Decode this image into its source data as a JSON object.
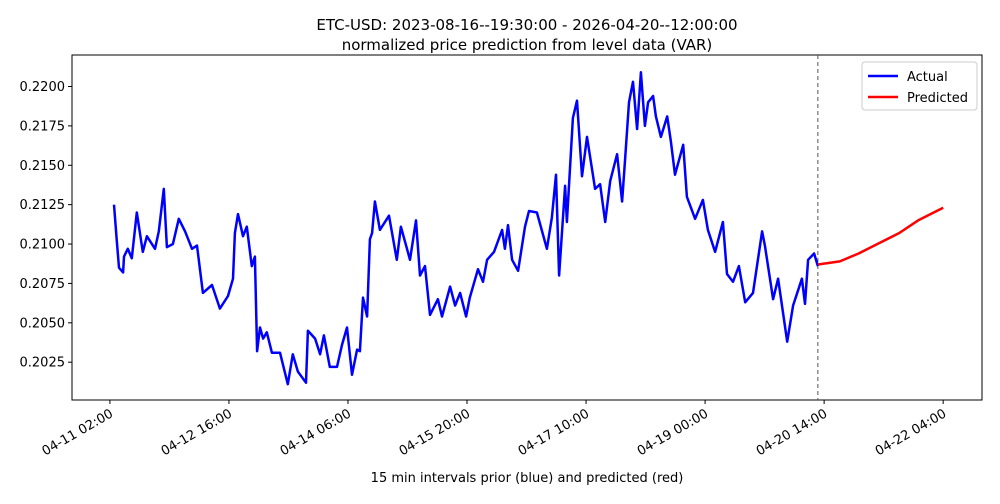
{
  "chart_data": {
    "type": "line",
    "title": "ETC-USD: 2023-08-16--19:30:00 - 2026-04-20--12:00:00",
    "subtitle": "normalized price prediction from level data (VAR)",
    "xlabel": "15 min intervals prior (blue) and predicted (red)",
    "ylabel": "",
    "x_unit": "hours since 04-11 02:00",
    "xlim": [
      -12.1,
      278.4
    ],
    "ylim": [
      0.2001,
      0.222
    ],
    "grid": false,
    "legend_placement": "top-right",
    "xticks": [
      {
        "x": 0,
        "label": "04-11 02:00"
      },
      {
        "x": 38,
        "label": "04-12 16:00"
      },
      {
        "x": 76,
        "label": "04-14 06:00"
      },
      {
        "x": 114,
        "label": "04-15 20:00"
      },
      {
        "x": 152,
        "label": "04-17 10:00"
      },
      {
        "x": 190,
        "label": "04-19 00:00"
      },
      {
        "x": 228,
        "label": "04-20 14:00"
      },
      {
        "x": 266,
        "label": "04-22 04:00"
      }
    ],
    "yticks": [
      {
        "y": 0.2025,
        "label": "0.2025"
      },
      {
        "y": 0.205,
        "label": "0.2050"
      },
      {
        "y": 0.2075,
        "label": "0.2075"
      },
      {
        "y": 0.21,
        "label": "0.2100"
      },
      {
        "y": 0.2125,
        "label": "0.2125"
      },
      {
        "y": 0.215,
        "label": "0.2150"
      },
      {
        "y": 0.2175,
        "label": "0.2175"
      },
      {
        "y": 0.22,
        "label": "0.2200"
      }
    ],
    "vline": {
      "x": 226,
      "style": "dashed",
      "color": "#555555"
    },
    "series": [
      {
        "name": "Actual",
        "color": "#0000ff",
        "x": [
          1.3,
          2.2,
          2.9,
          4.2,
          4.5,
          5.7,
          7.0,
          8.6,
          10.5,
          11.8,
          14.4,
          15.6,
          17.2,
          18.2,
          20.1,
          22.0,
          24.0,
          26.2,
          27.8,
          29.7,
          32.6,
          35.1,
          37.7,
          39.3,
          39.9,
          40.9,
          42.5,
          43.7,
          45.3,
          46.3,
          47.0,
          47.9,
          48.9,
          50.1,
          51.7,
          54.3,
          56.8,
          58.4,
          60.0,
          62.6,
          63.2,
          65.5,
          67.1,
          68.3,
          70.2,
          72.5,
          74.1,
          75.7,
          77.3,
          78.9,
          79.8,
          80.8,
          82.1,
          83.0,
          83.7,
          84.6,
          86.2,
          89.1,
          91.6,
          92.9,
          95.8,
          97.7,
          99.0,
          100.6,
          102.2,
          104.7,
          106.0,
          108.6,
          110.2,
          111.8,
          113.7,
          114.9,
          117.5,
          119.1,
          120.4,
          122.6,
          125.2,
          126.1,
          127.1,
          128.4,
          130.3,
          132.5,
          133.8,
          136.3,
          139.5,
          141.1,
          142.4,
          143.4,
          145.3,
          145.9,
          147.8,
          149.1,
          150.7,
          152.3,
          154.9,
          156.5,
          158.1,
          159.7,
          161.9,
          163.5,
          164.4,
          165.7,
          167.0,
          168.3,
          169.5,
          170.8,
          171.8,
          173.4,
          174.3,
          175.9,
          177.9,
          179.1,
          180.4,
          183.0,
          184.2,
          186.8,
          189.3,
          190.9,
          193.2,
          195.7,
          197.0,
          198.9,
          200.8,
          202.8,
          205.3,
          208.2,
          209.1,
          211.7,
          213.3,
          216.2,
          218.1,
          220.9,
          221.9,
          222.9,
          224.8,
          226.0
        ],
        "y": [
          0.2125,
          0.2102,
          0.2085,
          0.2082,
          0.2092,
          0.2097,
          0.2091,
          0.212,
          0.2095,
          0.2105,
          0.2097,
          0.2108,
          0.2135,
          0.2098,
          0.21,
          0.2116,
          0.2108,
          0.2097,
          0.2099,
          0.2069,
          0.2074,
          0.2059,
          0.2067,
          0.2078,
          0.2107,
          0.2119,
          0.2105,
          0.2111,
          0.2086,
          0.2092,
          0.2032,
          0.2047,
          0.204,
          0.2044,
          0.2031,
          0.2031,
          0.2011,
          0.203,
          0.2019,
          0.2012,
          0.2045,
          0.204,
          0.203,
          0.2042,
          0.2022,
          0.2022,
          0.2036,
          0.2047,
          0.2017,
          0.2033,
          0.2032,
          0.2066,
          0.2054,
          0.2103,
          0.2107,
          0.2127,
          0.2109,
          0.2118,
          0.209,
          0.2111,
          0.209,
          0.2115,
          0.208,
          0.2086,
          0.2055,
          0.2065,
          0.2054,
          0.2073,
          0.2061,
          0.2069,
          0.2054,
          0.2066,
          0.2084,
          0.2076,
          0.209,
          0.2095,
          0.2109,
          0.2097,
          0.2112,
          0.209,
          0.2083,
          0.2111,
          0.2121,
          0.212,
          0.2097,
          0.2117,
          0.2144,
          0.208,
          0.2137,
          0.2114,
          0.218,
          0.2191,
          0.2143,
          0.2168,
          0.2135,
          0.2138,
          0.2114,
          0.214,
          0.2157,
          0.2127,
          0.2152,
          0.219,
          0.2203,
          0.2173,
          0.2209,
          0.2175,
          0.219,
          0.2194,
          0.2181,
          0.2168,
          0.2181,
          0.2165,
          0.2144,
          0.2163,
          0.213,
          0.2116,
          0.2128,
          0.2109,
          0.2095,
          0.2114,
          0.2081,
          0.2076,
          0.2086,
          0.2063,
          0.2069,
          0.2108,
          0.2099,
          0.2065,
          0.2078,
          0.2038,
          0.2061,
          0.2078,
          0.2062,
          0.209,
          0.2094,
          0.2086
        ]
      },
      {
        "name": "Predicted",
        "color": "#ff0000",
        "x": [
          226,
          233,
          239,
          245,
          252,
          258,
          266
        ],
        "y": [
          0.2087,
          0.2089,
          0.2094,
          0.21,
          0.2107,
          0.2115,
          0.2123
        ]
      }
    ]
  }
}
